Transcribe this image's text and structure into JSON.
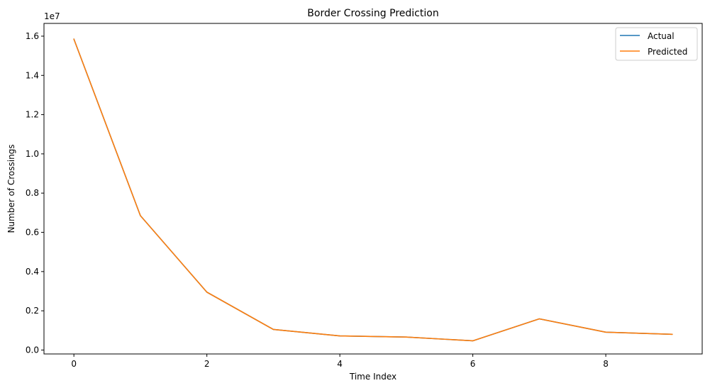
{
  "chart_data": {
    "type": "line",
    "title": "Border Crossing Prediction",
    "xlabel": "Time Index",
    "ylabel": "Number of Crossings",
    "y_offset_text": "1e7",
    "x": [
      0,
      1,
      2,
      3,
      4,
      5,
      6,
      7,
      8,
      9
    ],
    "xlim": [
      -0.45,
      9.45
    ],
    "ylim": [
      -0.02,
      1.665
    ],
    "xticks": [
      0,
      2,
      4,
      6,
      8
    ],
    "xtick_labels": [
      "0",
      "2",
      "4",
      "6",
      "8"
    ],
    "yticks": [
      0.0,
      0.2,
      0.4,
      0.6,
      0.8,
      1.0,
      1.2,
      1.4,
      1.6
    ],
    "ytick_labels": [
      "0.0",
      "0.2",
      "0.4",
      "0.6",
      "0.8",
      "1.0",
      "1.2",
      "1.4",
      "1.6"
    ],
    "series": [
      {
        "name": "Actual",
        "color": "#1f77b4",
        "values": [
          1.585,
          0.685,
          0.295,
          0.105,
          0.072,
          0.066,
          0.047,
          0.159,
          0.091,
          0.08
        ]
      },
      {
        "name": "Predicted",
        "color": "#ff7f0e",
        "values": [
          1.585,
          0.685,
          0.295,
          0.105,
          0.072,
          0.066,
          0.047,
          0.159,
          0.091,
          0.08
        ]
      }
    ],
    "legend": "top-right",
    "grid": false
  }
}
